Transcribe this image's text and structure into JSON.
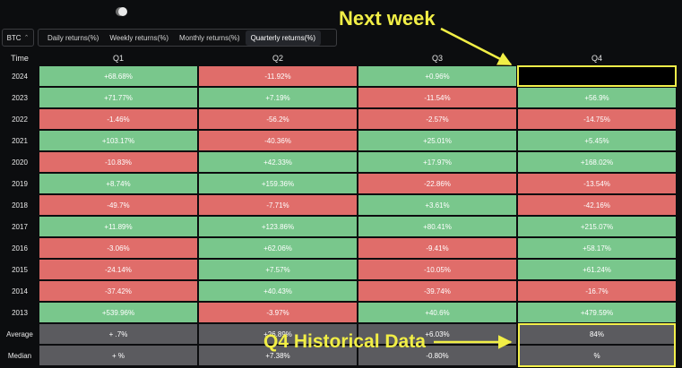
{
  "top": {
    "symbol": "BTC"
  },
  "tabs": [
    {
      "label": "Daily returns(%)"
    },
    {
      "label": "Weekly returns(%)"
    },
    {
      "label": "Monthly returns(%)"
    },
    {
      "label": "Quarterly returns(%)"
    }
  ],
  "active_tab_index": 3,
  "table": {
    "header": {
      "time": "Time",
      "q1": "Q1",
      "q2": "Q2",
      "q3": "Q3",
      "q4": "Q4"
    },
    "rows": [
      {
        "year": "2024",
        "q1": "+68.68%",
        "q2": "-11.92%",
        "q3": "+0.96%",
        "q4": ""
      },
      {
        "year": "2023",
        "q1": "+71.77%",
        "q2": "+7.19%",
        "q3": "-11.54%",
        "q4": "+56.9%"
      },
      {
        "year": "2022",
        "q1": "-1.46%",
        "q2": "-56.2%",
        "q3": "-2.57%",
        "q4": "-14.75%"
      },
      {
        "year": "2021",
        "q1": "+103.17%",
        "q2": "-40.36%",
        "q3": "+25.01%",
        "q4": "+5.45%"
      },
      {
        "year": "2020",
        "q1": "-10.83%",
        "q2": "+42.33%",
        "q3": "+17.97%",
        "q4": "+168.02%"
      },
      {
        "year": "2019",
        "q1": "+8.74%",
        "q2": "+159.36%",
        "q3": "-22.86%",
        "q4": "-13.54%"
      },
      {
        "year": "2018",
        "q1": "-49.7%",
        "q2": "-7.71%",
        "q3": "+3.61%",
        "q4": "-42.16%"
      },
      {
        "year": "2017",
        "q1": "+11.89%",
        "q2": "+123.86%",
        "q3": "+80.41%",
        "q4": "+215.07%"
      },
      {
        "year": "2016",
        "q1": "-3.06%",
        "q2": "+62.06%",
        "q3": "-9.41%",
        "q4": "+58.17%"
      },
      {
        "year": "2015",
        "q1": "-24.14%",
        "q2": "+7.57%",
        "q3": "-10.05%",
        "q4": "+61.24%"
      },
      {
        "year": "2014",
        "q1": "-37.42%",
        "q2": "+40.43%",
        "q3": "-39.74%",
        "q4": "-16.7%"
      },
      {
        "year": "2013",
        "q1": "+539.96%",
        "q2": "-3.97%",
        "q3": "+40.6%",
        "q4": "+479.59%"
      }
    ],
    "average": {
      "label": "Average",
      "q1": "+   .7%",
      "q2": "+26.89%",
      "q3": "+6.03%",
      "q4": "84%"
    },
    "median": {
      "label": "Median",
      "q1": "+  %",
      "q2": "+7.38%",
      "q3": "-0.80%",
      "q4": "%"
    }
  },
  "annotations": {
    "next_week": "Next week",
    "q4_hist": "Q4 Historical Data"
  },
  "colors": {
    "positive": "#79c78c",
    "negative": "#e06d6a",
    "summary": "#5b5b5f",
    "highlight": "#f3f04a",
    "background": "#0c0d0f"
  }
}
